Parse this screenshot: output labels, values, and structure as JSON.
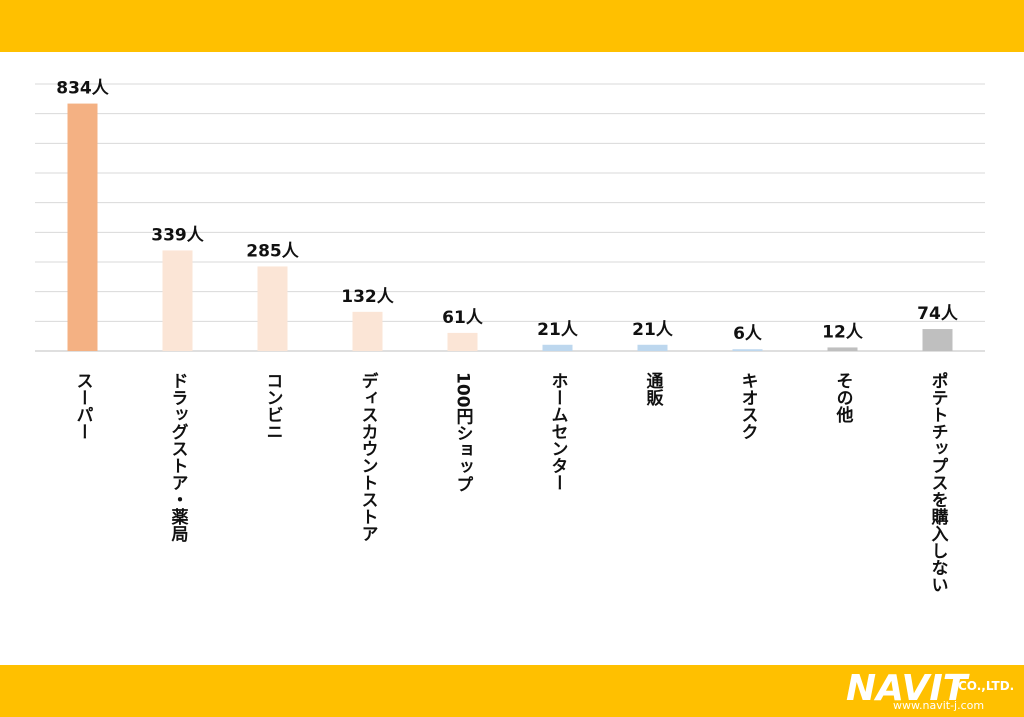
{
  "chart_data": {
    "type": "bar",
    "categories": [
      "スーパー",
      "ドラッグストア・薬局",
      "コンビニ",
      "ディスカウントストア",
      "100円ショップ",
      "ホームセンター",
      "通販",
      "キオスク",
      "その他",
      "ポテトチップスを購入しない"
    ],
    "values": [
      834,
      339,
      285,
      132,
      61,
      21,
      21,
      6,
      12,
      74
    ],
    "value_labels": [
      "834人",
      "339人",
      "285人",
      "132人",
      "61人",
      "21人",
      "21人",
      "6人",
      "12人",
      "74人"
    ],
    "colors": [
      "#f4b183",
      "#fbe5d6",
      "#fbe5d6",
      "#fbe5d6",
      "#fbe5d6",
      "#bdd7ee",
      "#bdd7ee",
      "#bdd7ee",
      "#bfbfbf",
      "#bfbfbf"
    ],
    "ylim": [
      0,
      900
    ],
    "yticks": [
      0,
      100,
      200,
      300,
      400,
      500,
      600,
      700,
      800,
      900
    ],
    "grid": true
  },
  "footer": {
    "brand": "NAVIT",
    "suffix": "CO.,LTD.",
    "url": "www.navit-j.com"
  }
}
